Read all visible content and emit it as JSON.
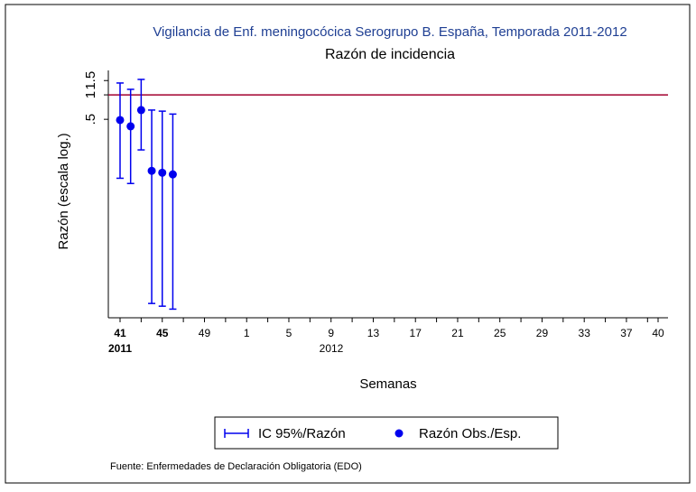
{
  "chart_data": {
    "type": "errorbar-scatter",
    "title": "Vigilancia de Enf. meningocócica Serogrupo B. España, Temporada 2011-2012",
    "subtitle": "Razón de incidencia",
    "y_label": "Razón (escala log.)",
    "x_label": "Semanas",
    "year_labels": [
      "2011",
      "2012"
    ],
    "source": "Fuente: Enfermedades de Declaración Obligatoria (EDO)",
    "log_y": true,
    "ylim": [
      0.0018,
      2
    ],
    "yticks": [
      {
        "value": 0.5,
        "label": ".5"
      },
      1,
      1.5
    ],
    "reference_line": {
      "value": 1,
      "color": "#a3002f"
    },
    "categories": [
      "41",
      null,
      null,
      null,
      "45",
      null,
      null,
      null,
      "49",
      null,
      null,
      null,
      "1",
      null,
      null,
      null,
      "5",
      null,
      null,
      null,
      "9",
      null,
      null,
      null,
      "13",
      null,
      null,
      null,
      "17",
      null,
      null,
      null,
      "21",
      null,
      null,
      null,
      "25",
      null,
      null,
      null,
      "29",
      null,
      null,
      null,
      "33",
      null,
      null,
      null,
      "37",
      null,
      null,
      "40"
    ],
    "series": [
      {
        "name": "IC 95%/Razón",
        "color": "#0000ee",
        "lower": [
          0.094,
          0.081,
          0.21,
          0.0027,
          0.0025,
          0.0023,
          null,
          null,
          null,
          null,
          null,
          null,
          null,
          null,
          null,
          null,
          null,
          null,
          null,
          null,
          null,
          null,
          null,
          null,
          null,
          null,
          null,
          null,
          null,
          null,
          null,
          null,
          null,
          null,
          null,
          null,
          null,
          null,
          null,
          null,
          null,
          null,
          null,
          null,
          null,
          null,
          null,
          null,
          null,
          null,
          null,
          null
        ],
        "upper": [
          1.4,
          1.17,
          1.55,
          0.65,
          0.63,
          0.58,
          null,
          null,
          null,
          null,
          null,
          null,
          null,
          null,
          null,
          null,
          null,
          null,
          null,
          null,
          null,
          null,
          null,
          null,
          null,
          null,
          null,
          null,
          null,
          null,
          null,
          null,
          null,
          null,
          null,
          null,
          null,
          null,
          null,
          null,
          null,
          null,
          null,
          null,
          null,
          null,
          null,
          null,
          null,
          null,
          null,
          null
        ]
      },
      {
        "name": "Razón Obs./Esp.",
        "color": "#0000ee",
        "values": [
          0.49,
          0.41,
          0.65,
          0.116,
          0.11,
          0.105,
          null,
          null,
          null,
          null,
          null,
          null,
          null,
          null,
          null,
          null,
          null,
          null,
          null,
          null,
          null,
          null,
          null,
          null,
          null,
          null,
          null,
          null,
          null,
          null,
          null,
          null,
          null,
          null,
          null,
          null,
          null,
          null,
          null,
          null,
          null,
          null,
          null,
          null,
          null,
          null,
          null,
          null,
          null,
          null,
          null,
          null
        ]
      }
    ]
  }
}
